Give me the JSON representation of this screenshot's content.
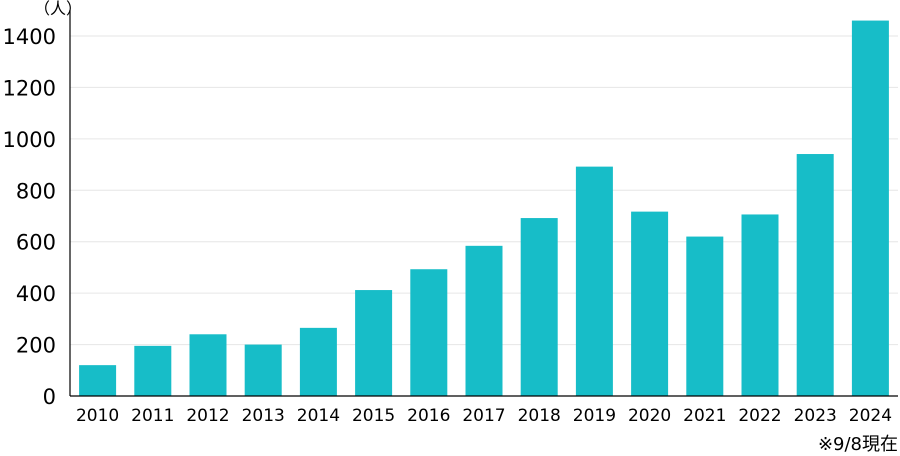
{
  "chart_data": {
    "type": "bar",
    "unit_label": "（人）",
    "categories": [
      "2010",
      "2011",
      "2012",
      "2013",
      "2014",
      "2015",
      "2016",
      "2017",
      "2018",
      "2019",
      "2020",
      "2021",
      "2022",
      "2023",
      "2024"
    ],
    "values": [
      120,
      195,
      240,
      200,
      265,
      412,
      493,
      584,
      692,
      892,
      717,
      620,
      706,
      941,
      1460
    ],
    "ylim": [
      0,
      1400
    ],
    "yticks": [
      0,
      200,
      400,
      600,
      800,
      1000,
      1200,
      1400
    ],
    "grid": true,
    "bar_color": "#17BDC8",
    "note": "※9/8現在"
  }
}
